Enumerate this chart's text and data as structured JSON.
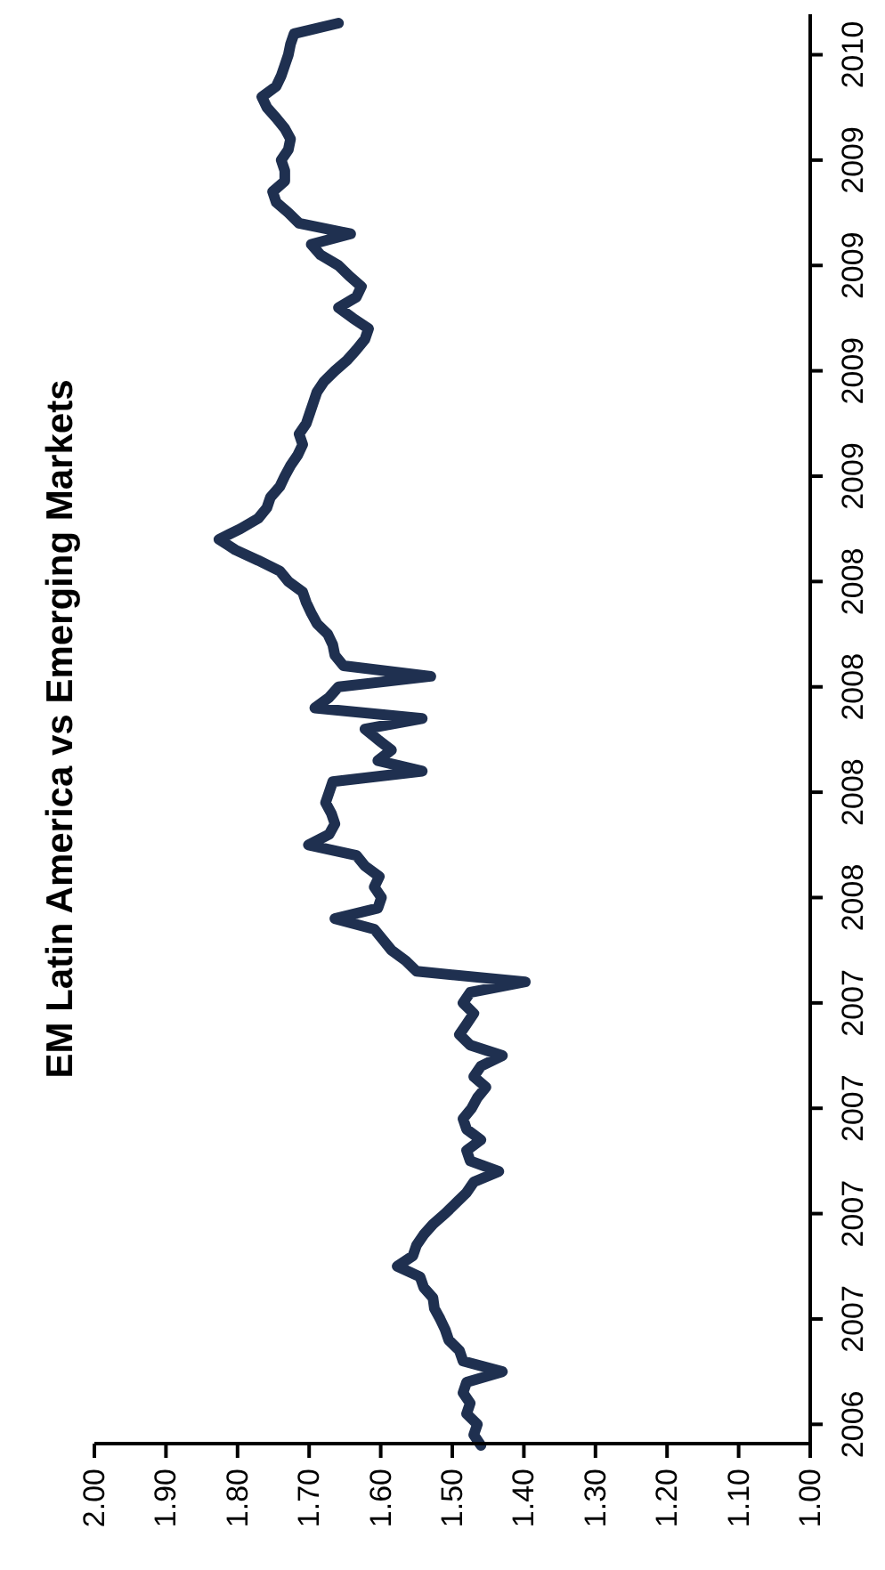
{
  "chart_data": {
    "type": "line",
    "title": "EM Latin America vs Emerging Markets",
    "orientation": "horizontal",
    "categories": [
      null,
      null,
      null,
      "2010",
      null,
      null,
      null,
      null,
      null,
      null,
      null,
      null,
      null,
      "2009",
      null,
      null,
      null,
      null,
      null,
      null,
      null,
      null,
      null,
      "2009",
      null,
      null,
      null,
      null,
      null,
      null,
      null,
      null,
      null,
      "2009",
      null,
      null,
      null,
      null,
      null,
      null,
      null,
      null,
      null,
      "2009",
      null,
      null,
      null,
      null,
      null,
      null,
      null,
      null,
      null,
      "2008",
      null,
      null,
      null,
      null,
      null,
      null,
      null,
      null,
      null,
      "2008",
      null,
      null,
      null,
      null,
      null,
      null,
      null,
      null,
      null,
      "2008",
      null,
      null,
      null,
      null,
      null,
      null,
      null,
      null,
      null,
      "2008",
      null,
      null,
      null,
      null,
      null,
      null,
      null,
      null,
      null,
      "2007",
      null,
      null,
      null,
      null,
      null,
      null,
      null,
      null,
      null,
      "2007",
      null,
      null,
      null,
      null,
      null,
      null,
      null,
      null,
      null,
      "2007",
      null,
      null,
      null,
      null,
      null,
      null,
      null,
      null,
      null,
      "2007",
      null,
      null,
      null,
      null,
      null,
      null,
      null,
      null,
      null,
      "2006",
      null,
      null
    ],
    "series": [
      {
        "color": "#1f3050",
        "values": [
          1.659,
          1.721,
          1.726,
          1.729,
          1.734,
          1.739,
          1.746,
          1.766,
          1.759,
          1.746,
          1.734,
          1.726,
          1.729,
          1.739,
          1.734,
          1.734,
          1.751,
          1.746,
          1.729,
          1.714,
          1.642,
          1.697,
          1.684,
          1.659,
          1.644,
          1.627,
          1.634,
          1.659,
          1.639,
          1.617,
          1.622,
          1.634,
          1.647,
          1.664,
          1.679,
          1.689,
          1.694,
          1.699,
          1.704,
          1.714,
          1.709,
          1.716,
          1.726,
          1.734,
          1.741,
          1.754,
          1.759,
          1.771,
          1.796,
          1.826,
          1.803,
          1.771,
          1.741,
          1.729,
          1.709,
          1.704,
          1.697,
          1.689,
          1.674,
          1.667,
          1.664,
          1.652,
          1.53,
          1.659,
          1.672,
          1.692,
          1.542,
          1.622,
          1.604,
          1.585,
          1.604,
          1.542,
          1.667,
          1.672,
          1.677,
          1.669,
          1.664,
          1.672,
          1.701,
          1.634,
          1.622,
          1.602,
          1.609,
          1.599,
          1.604,
          1.664,
          1.609,
          1.597,
          1.585,
          1.565,
          1.55,
          1.398,
          1.475,
          1.485,
          1.47,
          1.48,
          1.49,
          1.475,
          1.43,
          1.46,
          1.47,
          1.453,
          1.465,
          1.473,
          1.485,
          1.48,
          1.46,
          1.48,
          1.475,
          1.435,
          1.47,
          1.48,
          1.495,
          1.51,
          1.527,
          1.54,
          1.55,
          1.555,
          1.577,
          1.545,
          1.54,
          1.527,
          1.525,
          1.517,
          1.51,
          1.505,
          1.49,
          1.485,
          1.43,
          1.48,
          1.485,
          1.475,
          1.48,
          1.465,
          1.47,
          1.46
        ]
      }
    ],
    "xlim": [
      2.0,
      1.0
    ],
    "xticks": [
      {
        "value": 2.0,
        "label": "2.00"
      },
      {
        "value": 1.9,
        "label": "1.90"
      },
      {
        "value": 1.8,
        "label": "1.80"
      },
      {
        "value": 1.7,
        "label": "1.70"
      },
      {
        "value": 1.6,
        "label": "1.60"
      },
      {
        "value": 1.5,
        "label": "1.50"
      },
      {
        "value": 1.4,
        "label": "1.40"
      },
      {
        "value": 1.3,
        "label": "1.30"
      },
      {
        "value": 1.2,
        "label": "1.20"
      },
      {
        "value": 1.1,
        "label": "1.10"
      },
      {
        "value": 1.0,
        "label": "1.00"
      }
    ],
    "line_style": "solid"
  }
}
